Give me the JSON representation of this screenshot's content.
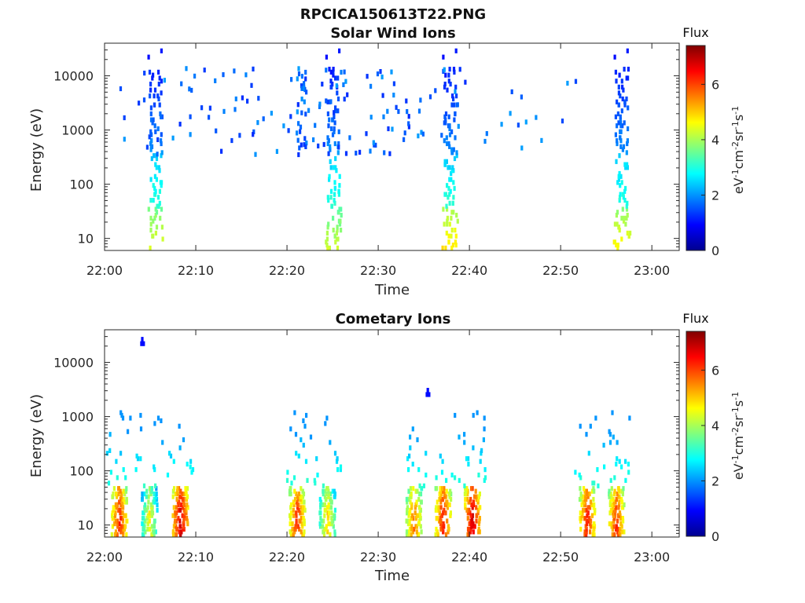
{
  "figure": {
    "title": "RPCICA150613T22.PNG",
    "colormap": "jet"
  },
  "chart_data": [
    {
      "type": "heatmap",
      "title": "Solar Wind Ions",
      "xlabel": "Time",
      "ylabel": "Energy (eV)",
      "x_scale": "time",
      "y_scale": "log",
      "xlim": [
        "22:00",
        "23:03"
      ],
      "ylim": [
        6,
        40000
      ],
      "x_ticks": [
        "22:00",
        "22:10",
        "22:20",
        "22:30",
        "22:40",
        "22:50",
        "23:00"
      ],
      "y_ticks": [
        "10",
        "100",
        "1000",
        "10000"
      ],
      "colorbar": {
        "title": "Flux",
        "label": "eV-1cm-2sr-1s-1",
        "range": [
          0,
          7.4
        ],
        "ticks": [
          "0",
          "2",
          "4",
          "6"
        ]
      },
      "bursts": [
        {
          "time": "22:05.5",
          "peak_flux": 4.3,
          "scatter_windows": [
            "22:01-22:04.5",
            "22:08-22:09.3"
          ]
        },
        {
          "time": "22:25.0",
          "peak_flux": 4.1,
          "scatter_windows": [
            "22:21-22:23.5"
          ]
        },
        {
          "time": "22:37.8",
          "peak_flux": 4.6,
          "scatter_windows": [
            "22:33.5-22:36.5",
            "22:40-22:41.5"
          ]
        },
        {
          "time": "22:56.6",
          "peak_flux": 4.5,
          "scatter_windows": [
            "22:52-22:55"
          ]
        }
      ]
    },
    {
      "type": "heatmap",
      "title": "Cometary Ions",
      "xlabel": "Time",
      "ylabel": "Energy (eV)",
      "x_scale": "time",
      "y_scale": "log",
      "xlim": [
        "22:00",
        "23:03"
      ],
      "ylim": [
        6,
        40000
      ],
      "x_ticks": [
        "22:00",
        "22:10",
        "22:20",
        "22:30",
        "22:40",
        "22:50",
        "23:00"
      ],
      "y_ticks": [
        "10",
        "100",
        "1000",
        "10000"
      ],
      "colorbar": {
        "title": "Flux",
        "label": "eV-1cm-2sr-1s-1",
        "range": [
          0,
          7.4
        ],
        "ticks": [
          "0",
          "2",
          "4",
          "6"
        ]
      },
      "bursts": [
        {
          "time": "22:01.5",
          "peak_flux": 6.1
        },
        {
          "time": "22:04.8",
          "peak_flux": 4.5
        },
        {
          "time": "22:08.2",
          "peak_flux": 6.6
        },
        {
          "time": "22:21.0",
          "peak_flux": 6.0
        },
        {
          "time": "22:24.3",
          "peak_flux": 4.8
        },
        {
          "time": "22:33.8",
          "peak_flux": 5.5
        },
        {
          "time": "22:37.0",
          "peak_flux": 6.2
        },
        {
          "time": "22:40.2",
          "peak_flux": 6.6
        },
        {
          "time": "22:52.8",
          "peak_flux": 6.1
        },
        {
          "time": "22:56.0",
          "peak_flux": 6.0
        }
      ],
      "isolated_points": [
        {
          "time": "22:04",
          "energy": 20000,
          "flux": 1.0
        },
        {
          "time": "22:35.3",
          "energy": 2300,
          "flux": 1.0
        }
      ]
    }
  ]
}
